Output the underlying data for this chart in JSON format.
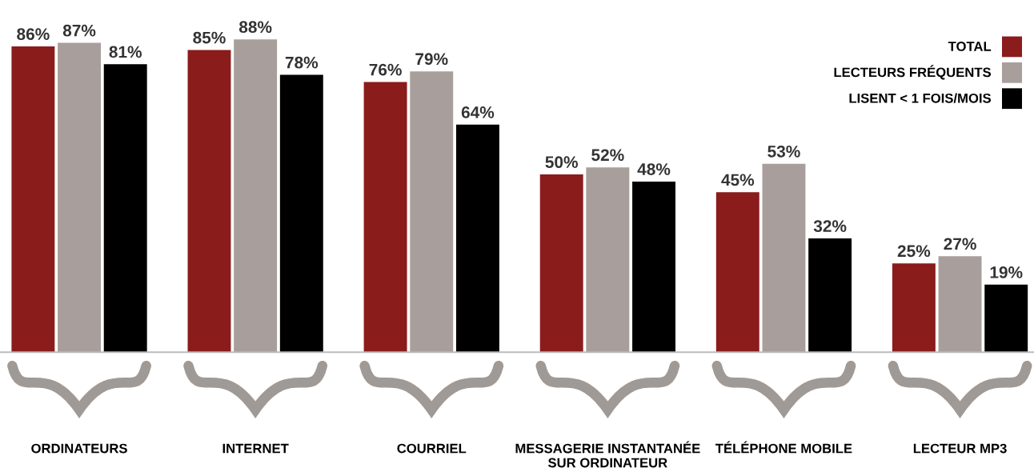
{
  "chart_data": {
    "type": "bar",
    "categories": [
      "ORDINATEURS",
      "INTERNET",
      "COURRIEL",
      "MESSAGERIE INSTANTANÉE\nSUR ORDINATEUR",
      "TÉLÉPHONE MOBILE",
      "LECTEUR MP3"
    ],
    "series": [
      {
        "name": "TOTAL",
        "color": "#8b1c1c",
        "values": [
          86,
          85,
          76,
          50,
          45,
          25
        ],
        "value_labels": [
          "86%",
          "85%",
          "76%",
          "50%",
          "45%",
          "25%"
        ]
      },
      {
        "name": "LECTEURS FRÉQUENTS",
        "color": "#a89f9c",
        "values": [
          87,
          88,
          79,
          52,
          53,
          27
        ],
        "value_labels": [
          "87%",
          "88%",
          "79%",
          "52%",
          "53%",
          "27%"
        ]
      },
      {
        "name": "LISENT < 1 FOIS/MOIS",
        "color": "#000000",
        "values": [
          81,
          78,
          64,
          48,
          32,
          19
        ],
        "value_labels": [
          "81%",
          "78%",
          "64%",
          "48%",
          "32%",
          "19%"
        ]
      }
    ],
    "legend": "top right",
    "grid": false
  }
}
